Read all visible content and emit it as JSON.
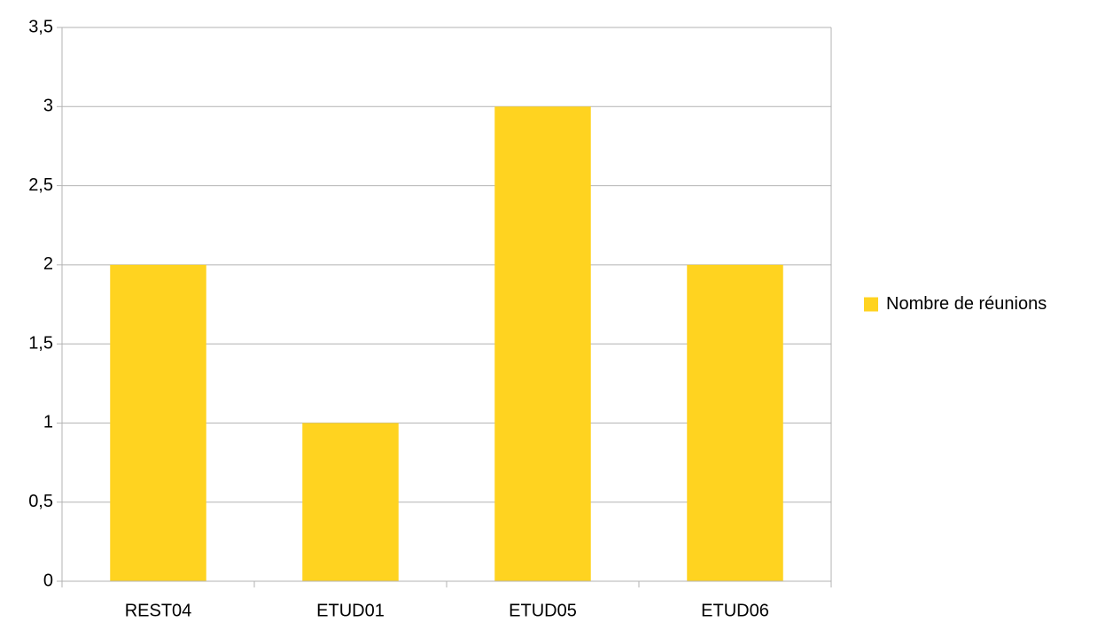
{
  "chart_data": {
    "type": "bar",
    "categories": [
      "REST04",
      "ETUD01",
      "ETUD05",
      "ETUD06"
    ],
    "series": [
      {
        "name": "Nombre de réunions",
        "color": "#ffd320",
        "values": [
          2,
          1,
          3,
          2
        ]
      }
    ],
    "ylim": [
      0,
      3.5
    ],
    "yticks": [
      0,
      {
        "value": 0.5,
        "label": "0,5"
      },
      1,
      {
        "value": 1.5,
        "label": "1,5"
      },
      2,
      {
        "value": 2.5,
        "label": "2,5"
      },
      3,
      {
        "value": 3.5,
        "label": "3,5"
      }
    ],
    "grid": true,
    "legend": "right"
  }
}
